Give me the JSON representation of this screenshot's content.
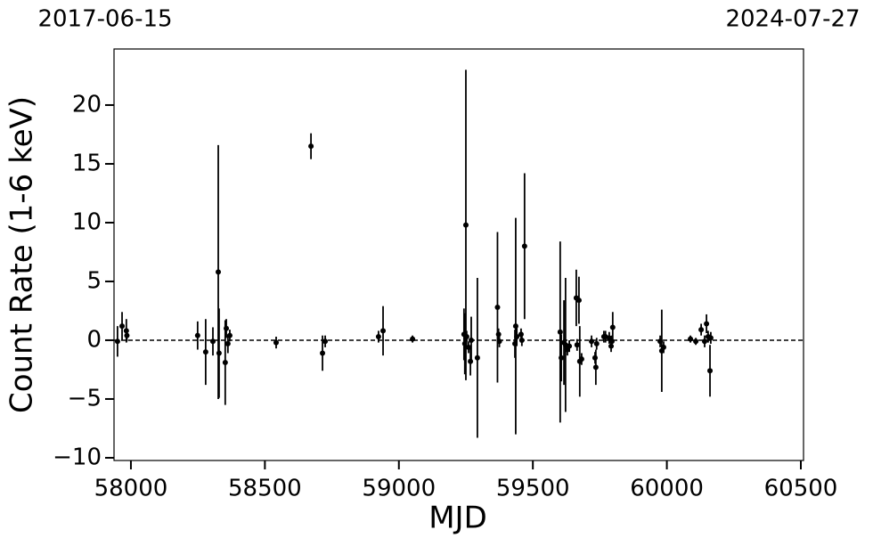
{
  "chart_data": {
    "type": "scatter",
    "x_label": "MJD",
    "y_label": "Count Rate (1-6 keV)",
    "top_left_label": "2017-06-15",
    "top_right_label": "2024-07-27",
    "xlim": [
      57937,
      60510
    ],
    "ylim": [
      -10.23,
      24.77
    ],
    "xticks": [
      58000,
      58500,
      59000,
      59500,
      60000,
      60500
    ],
    "yticks": [
      {
        "value": -10,
        "label": "−10"
      },
      {
        "value": -5,
        "label": "−5"
      },
      0,
      5,
      10,
      15,
      20
    ],
    "reference_line": 0,
    "series": [
      {
        "color": "#000000",
        "x": [
          57950,
          57967,
          57983,
          57985,
          58249,
          58279,
          58306,
          58326,
          58329,
          58352,
          58356,
          58362,
          58369,
          58542,
          58672,
          58715,
          58725,
          58924,
          58941,
          59051,
          59243,
          59246,
          59250,
          59253,
          59260,
          59267,
          59270,
          59293,
          59368,
          59372,
          59375,
          59433,
          59436,
          59440,
          59456,
          59459,
          59469,
          59602,
          59606,
          59616,
          59622,
          59629,
          59636,
          59662,
          59665,
          59672,
          59675,
          59682,
          59719,
          59732,
          59735,
          59738,
          59765,
          59771,
          59785,
          59792,
          59795,
          59798,
          59975,
          59981,
          59988,
          60088,
          60108,
          60128,
          60141,
          60148,
          60154,
          60161,
          60164
        ],
        "values": [
          -0.1,
          1.2,
          0.8,
          0.4,
          0.4,
          -1.0,
          -0.1,
          5.8,
          -1.1,
          -1.9,
          1.0,
          -0.3,
          0.4,
          -0.2,
          16.5,
          -1.1,
          -0.1,
          0.3,
          0.8,
          0.1,
          0.5,
          -0.3,
          9.8,
          0.3,
          -0.6,
          -1.8,
          0.0,
          -1.5,
          2.8,
          0.5,
          -0.1,
          -0.3,
          1.2,
          0.3,
          0.5,
          0.0,
          8.0,
          0.7,
          -1.5,
          -0.2,
          -0.4,
          -0.8,
          -0.5,
          3.6,
          -0.4,
          3.4,
          -1.8,
          -1.6,
          -0.1,
          -1.5,
          -2.3,
          -0.3,
          0.3,
          0.3,
          0.2,
          -0.5,
          -0.1,
          1.1,
          -0.1,
          -0.9,
          -0.6,
          0.1,
          -0.1,
          0.9,
          -0.1,
          1.4,
          0.3,
          -2.6,
          0.2
        ],
        "errors": [
          1.3,
          1.2,
          1.0,
          0.5,
          1.2,
          2.8,
          1.2,
          10.8,
          3.8,
          3.6,
          0.8,
          0.8,
          0.5,
          0.5,
          1.1,
          1.5,
          0.5,
          0.5,
          2.1,
          0.3,
          2.2,
          2.6,
          13.2,
          0.5,
          0.5,
          1.2,
          2.0,
          6.8,
          6.4,
          0.5,
          0.5,
          1.2,
          9.2,
          0.8,
          0.5,
          0.5,
          6.2,
          7.7,
          2.0,
          3.6,
          5.7,
          0.5,
          0.5,
          2.4,
          0.5,
          2.0,
          3.0,
          0.5,
          0.5,
          0.5,
          1.5,
          0.5,
          0.5,
          0.5,
          0.5,
          0.5,
          0.5,
          1.3,
          0.5,
          3.5,
          0.5,
          0.3,
          0.3,
          0.5,
          0.5,
          0.8,
          0.5,
          2.2,
          0.5
        ]
      }
    ]
  }
}
